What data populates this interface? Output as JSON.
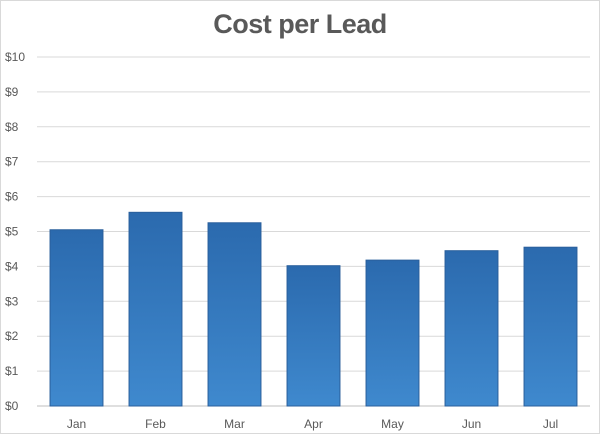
{
  "chart_data": {
    "type": "bar",
    "title": "Cost per Lead",
    "xlabel": "",
    "ylabel": "",
    "categories": [
      "Jan",
      "Feb",
      "Mar",
      "Apr",
      "May",
      "Jun",
      "Jul"
    ],
    "values": [
      5.05,
      5.55,
      5.25,
      4.02,
      4.18,
      4.45,
      4.55
    ],
    "ylim": [
      0,
      10
    ],
    "yticks": [
      0,
      1,
      2,
      3,
      4,
      5,
      6,
      7,
      8,
      9,
      10
    ],
    "ytick_labels": [
      "$0",
      "$1",
      "$2",
      "$3",
      "$4",
      "$5",
      "$6",
      "$7",
      "$8",
      "$9",
      "$10"
    ],
    "grid": true,
    "legend": "none",
    "colors": {
      "bar_top": "#2B6AAE",
      "bar_bottom": "#3F89CE",
      "bar_edge": "#2A5F9C",
      "grid": "#d9d9d9",
      "axis": "#bfbfbf",
      "text": "#595959"
    }
  }
}
